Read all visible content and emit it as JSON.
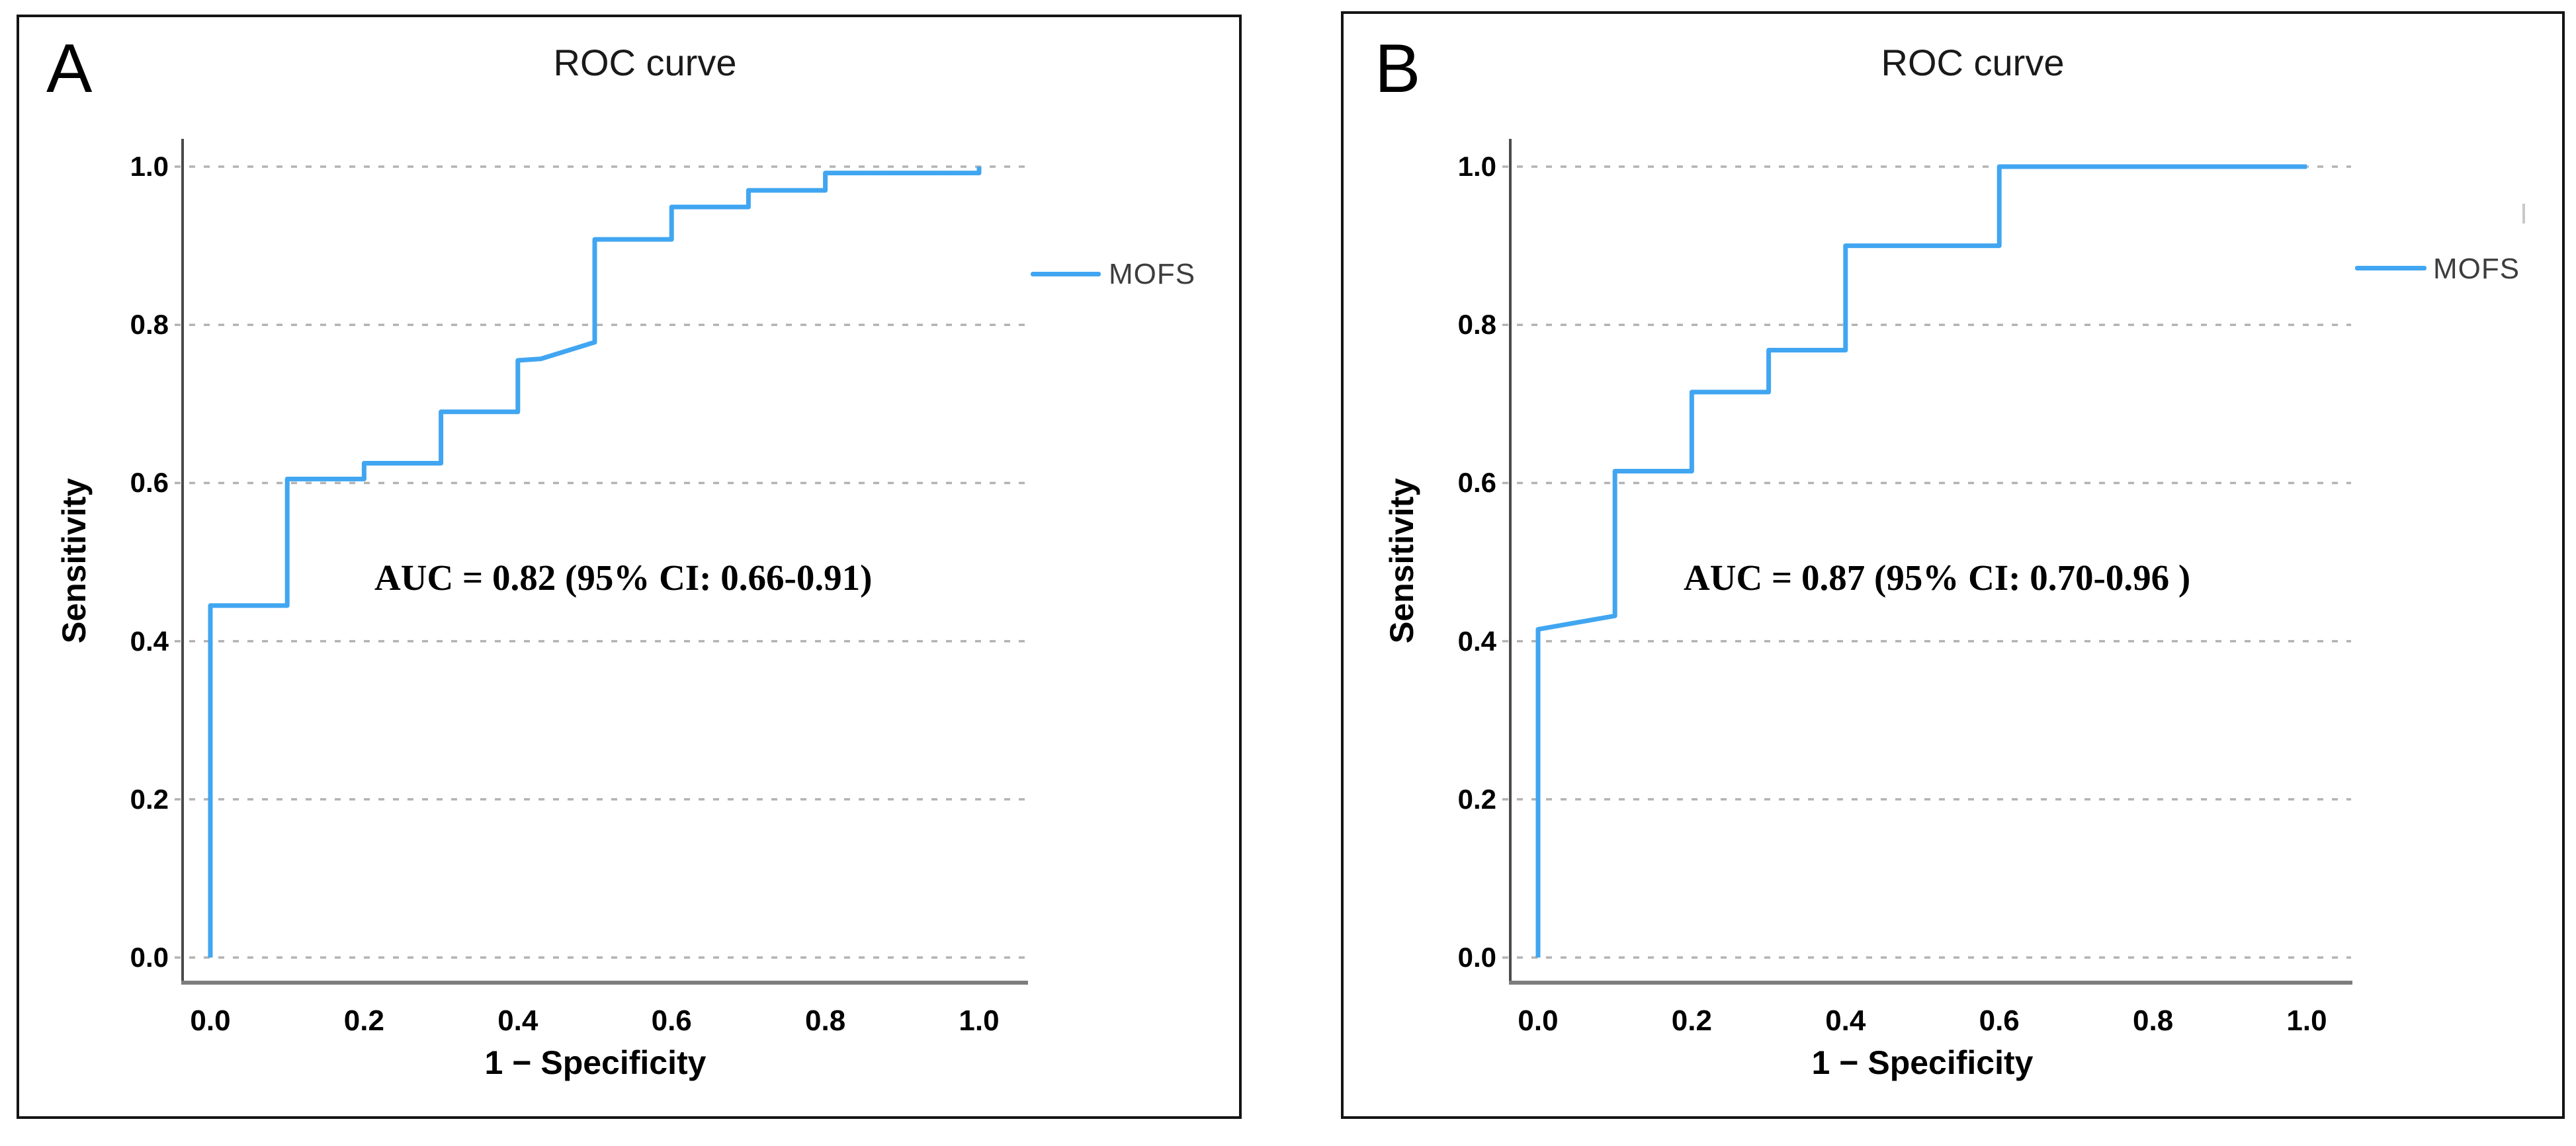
{
  "figure": {
    "background": "#ffffff"
  },
  "colors": {
    "curve": "#41a6f1",
    "grid": "#b3b3b3",
    "y_axis": "#4a4a4a",
    "x_axis": "#7d7d7d",
    "border": "#141414",
    "title_text": "#1a1a1a",
    "legend_text": "#3d3d3d",
    "text": "#000000"
  },
  "panels": [
    {
      "letter": "A",
      "title": "ROC curve",
      "xlabel": "1 − Specificity",
      "ylabel": "Sensitivity",
      "auc_text": "AUC = 0.82 (95% CI: 0.66-0.91)",
      "legend": {
        "label": "MOFS"
      },
      "x_tick_labels": [
        "0.0",
        "0.2",
        "0.4",
        "0.6",
        "0.8",
        "1.0"
      ],
      "y_tick_labels": [
        "1.0",
        "0.8",
        "0.6",
        "0.4",
        "0.2",
        "0.0"
      ]
    },
    {
      "letter": "B",
      "title": "ROC curve",
      "xlabel": "1 − Specificity",
      "ylabel": "Sensitivity",
      "auc_text": "AUC = 0.87 (95% CI: 0.70-0.96 )",
      "legend": {
        "label": "MOFS"
      },
      "x_tick_labels": [
        "0.0",
        "0.2",
        "0.4",
        "0.6",
        "0.8",
        "1.0"
      ],
      "y_tick_labels": [
        "1.0",
        "0.8",
        "0.6",
        "0.4",
        "0.2",
        "0.0"
      ]
    }
  ],
  "chart_data": [
    {
      "type": "line",
      "subtype": "roc-step-curve",
      "panel": "A",
      "title": "ROC curve",
      "xlabel": "1 − Specificity",
      "ylabel": "Sensitivity",
      "xlim": [
        0,
        1
      ],
      "ylim": [
        0,
        1
      ],
      "x_ticks": [
        0.0,
        0.2,
        0.4,
        0.6,
        0.8,
        1.0
      ],
      "y_ticks": [
        0.0,
        0.2,
        0.4,
        0.6,
        0.8,
        1.0
      ],
      "grid": "horizontal-dashed",
      "legend_position": "right-outside",
      "annotation": "AUC = 0.82 (95% CI: 0.66-0.91)",
      "auc": 0.82,
      "ci_95": [
        0.66,
        0.91
      ],
      "series": [
        {
          "name": "MOFS",
          "color": "#41a6f1",
          "points": [
            [
              0,
              0
            ],
            [
              0,
              0.445
            ],
            [
              0.1,
              0.445
            ],
            [
              0.1,
              0.605
            ],
            [
              0.2,
              0.605
            ],
            [
              0.2,
              0.625
            ],
            [
              0.3,
              0.625
            ],
            [
              0.3,
              0.69
            ],
            [
              0.4,
              0.69
            ],
            [
              0.4,
              0.755
            ],
            [
              0.43,
              0.757
            ],
            [
              0.5,
              0.778
            ],
            [
              0.5,
              0.908
            ],
            [
              0.6,
              0.908
            ],
            [
              0.6,
              0.949
            ],
            [
              0.7,
              0.949
            ],
            [
              0.7,
              0.97
            ],
            [
              0.8,
              0.97
            ],
            [
              0.8,
              0.992
            ],
            [
              1.0,
              0.992
            ],
            [
              1.0,
              1.0
            ]
          ]
        }
      ]
    },
    {
      "type": "line",
      "subtype": "roc-step-curve",
      "panel": "B",
      "title": "ROC curve",
      "xlabel": "1 − Specificity",
      "ylabel": "Sensitivity",
      "xlim": [
        0,
        1
      ],
      "ylim": [
        0,
        1
      ],
      "x_ticks": [
        0.0,
        0.2,
        0.4,
        0.6,
        0.8,
        1.0
      ],
      "y_ticks": [
        0.0,
        0.2,
        0.4,
        0.6,
        0.8,
        1.0
      ],
      "grid": "horizontal-dashed",
      "legend_position": "right-outside",
      "annotation": "AUC = 0.87 (95% CI: 0.70-0.96 )",
      "auc": 0.87,
      "ci_95": [
        0.7,
        0.96
      ],
      "series": [
        {
          "name": "MOFS",
          "color": "#41a6f1",
          "points": [
            [
              0,
              0
            ],
            [
              0,
              0.415
            ],
            [
              0.1,
              0.432
            ],
            [
              0.1,
              0.615
            ],
            [
              0.2,
              0.615
            ],
            [
              0.2,
              0.715
            ],
            [
              0.3,
              0.715
            ],
            [
              0.3,
              0.768
            ],
            [
              0.4,
              0.768
            ],
            [
              0.4,
              0.9
            ],
            [
              0.6,
              0.9
            ],
            [
              0.6,
              1.0
            ],
            [
              1.0,
              1.0
            ]
          ]
        }
      ]
    }
  ]
}
